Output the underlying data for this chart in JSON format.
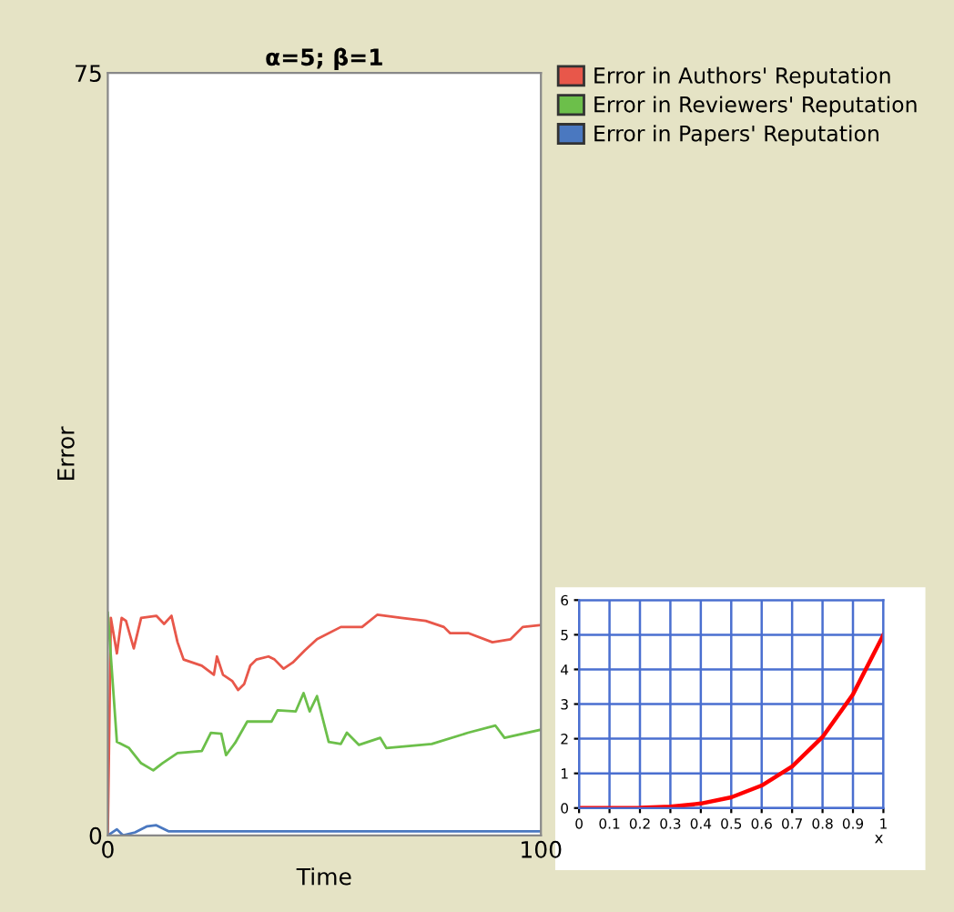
{
  "chart_data": [
    {
      "type": "line",
      "title": "α=5; β=1",
      "xlabel": "Time",
      "ylabel": "Error",
      "xlim": [
        0,
        100
      ],
      "ylim": [
        0,
        75
      ],
      "xticks": [
        0,
        100
      ],
      "yticks": [
        0,
        75
      ],
      "grid": false,
      "legend": "top right",
      "marker": "none",
      "line_style": "solid",
      "series": [
        {
          "name": "Error in Authors' Reputation",
          "color": "#e8574a",
          "x": [
            0,
            0.7,
            2.1,
            3.2,
            4.2,
            6.0,
            7.7,
            11.2,
            13.0,
            14.7,
            16.1,
            17.5,
            21.7,
            24.5,
            25.2,
            26.6,
            28.7,
            30.1,
            31.5,
            32.9,
            34.3,
            37.1,
            38.5,
            40.6,
            42.7,
            45.5,
            48.3,
            53.8,
            58.7,
            62.2,
            67.8,
            73.4,
            77.6,
            79.0,
            83.2,
            88.8,
            93.0,
            95.8,
            100
          ],
          "values": [
            0,
            21.4,
            17.9,
            21.4,
            21.1,
            18.4,
            21.4,
            21.6,
            20.8,
            21.6,
            19.0,
            17.3,
            16.7,
            15.8,
            17.6,
            15.8,
            15.2,
            14.3,
            14.9,
            16.7,
            17.3,
            17.6,
            17.3,
            16.4,
            17.0,
            18.2,
            19.3,
            20.5,
            20.5,
            21.7,
            21.4,
            21.1,
            20.5,
            19.9,
            19.9,
            19.0,
            19.3,
            20.5,
            20.7
          ]
        },
        {
          "name": "Error in Reviewers' Reputation",
          "color": "#6cbf4a",
          "x": [
            0,
            2.1,
            4.9,
            7.7,
            10.5,
            12.6,
            16.1,
            21.7,
            23.8,
            26.2,
            27.3,
            29.4,
            32.2,
            37.8,
            39.2,
            43.4,
            45.2,
            46.6,
            48.3,
            51.0,
            53.8,
            55.2,
            58.0,
            62.9,
            64.3,
            74.8,
            83.2,
            89.5,
            91.6,
            100
          ],
          "values": [
            21.9,
            9.2,
            8.6,
            7.1,
            6.4,
            7.1,
            8.1,
            8.3,
            10.1,
            10.0,
            7.9,
            9.1,
            11.2,
            11.2,
            12.3,
            12.2,
            14.0,
            12.2,
            13.7,
            9.2,
            9.0,
            10.1,
            8.9,
            9.6,
            8.6,
            9.0,
            10.1,
            10.8,
            9.6,
            10.4
          ]
        },
        {
          "name": "Error in Papers' Reputation",
          "color": "#4a78c0",
          "x": [
            0,
            2.1,
            3.5,
            6.3,
            9.1,
            11.2,
            14.0,
            100
          ],
          "values": [
            0,
            0.6,
            0.0,
            0.3,
            0.9,
            1.0,
            0.4,
            0.4
          ]
        }
      ]
    },
    {
      "type": "line",
      "xlabel": "x",
      "xlim": [
        0,
        1
      ],
      "ylim": [
        0,
        6
      ],
      "xticks": [
        0,
        0.1,
        0.2,
        0.3,
        0.4,
        0.5,
        0.6,
        0.7,
        0.8,
        0.9,
        1
      ],
      "yticks": [
        0,
        1,
        2,
        3,
        4,
        5,
        6
      ],
      "grid": true,
      "marker": "none",
      "line_style": "solid",
      "series": [
        {
          "color": "#ff0000",
          "x": [
            0,
            0.1,
            0.2,
            0.3,
            0.4,
            0.5,
            0.6,
            0.7,
            0.8,
            0.9,
            1
          ],
          "values": [
            0,
            0,
            0.01,
            0.04,
            0.13,
            0.31,
            0.65,
            1.2,
            2.05,
            3.28,
            5
          ]
        }
      ]
    }
  ]
}
